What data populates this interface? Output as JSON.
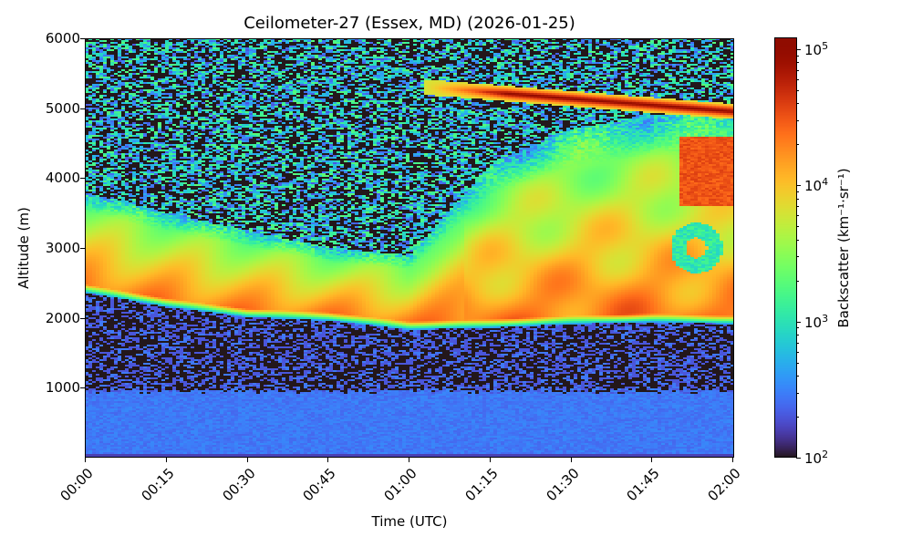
{
  "chart_data": {
    "type": "heatmap",
    "title": "Ceilometer-27 (Essex, MD) (2026-01-25)",
    "xlabel": "Time (UTC)",
    "ylabel": "Altitude (m)",
    "colorbar_label": "Backscatter (km⁻¹·sr⁻¹)",
    "colorbar_scale": "log",
    "colorbar_range": [
      100,
      120000
    ],
    "colorbar_ticks": [
      "10^2",
      "10^3",
      "10^4",
      "10^5"
    ],
    "colormap": "turbo",
    "x_ticks": [
      "00:00",
      "00:15",
      "00:30",
      "00:45",
      "01:00",
      "01:15",
      "01:30",
      "01:45",
      "02:00"
    ],
    "x_range_minutes": [
      0,
      120
    ],
    "y_ticks": [
      1000,
      2000,
      3000,
      4000,
      5000,
      6000
    ],
    "y_range": [
      0,
      6000
    ],
    "grid": false,
    "features": {
      "surface_layer": {
        "top_m": 950,
        "log10_backscatter": 2.45
      },
      "clear_gap": {
        "from_m": 950,
        "to_m_start": 2350,
        "to_m_end": 1950,
        "log10_backscatter": 2.1
      },
      "aerosol_layer": {
        "base_m": [
          [
            0,
            2400
          ],
          [
            15,
            2200
          ],
          [
            30,
            2050
          ],
          [
            45,
            2000
          ],
          [
            60,
            1870
          ],
          [
            75,
            1900
          ],
          [
            90,
            1950
          ],
          [
            105,
            1980
          ],
          [
            120,
            1950
          ]
        ],
        "top_m": [
          [
            0,
            3800
          ],
          [
            15,
            3500
          ],
          [
            30,
            3250
          ],
          [
            45,
            3000
          ],
          [
            60,
            2900
          ],
          [
            75,
            4200
          ],
          [
            90,
            4700
          ],
          [
            105,
            4900
          ],
          [
            120,
            4950
          ]
        ],
        "peak_log10": 4.35
      },
      "elevated_cloud": {
        "start_min": 63,
        "end_min": 120,
        "altitude_m_start": 5300,
        "altitude_m_end": 4950,
        "peak_log10": 5.0
      },
      "noise_region": {
        "above_layer": true,
        "log10_range": [
          2.0,
          3.3
        ]
      }
    }
  },
  "colorbar": {
    "ticks": [
      {
        "base": "10",
        "exp": "5",
        "value": 100000
      },
      {
        "base": "10",
        "exp": "4",
        "value": 10000
      },
      {
        "base": "10",
        "exp": "3",
        "value": 1000
      },
      {
        "base": "10",
        "exp": "2",
        "value": 100
      }
    ]
  }
}
